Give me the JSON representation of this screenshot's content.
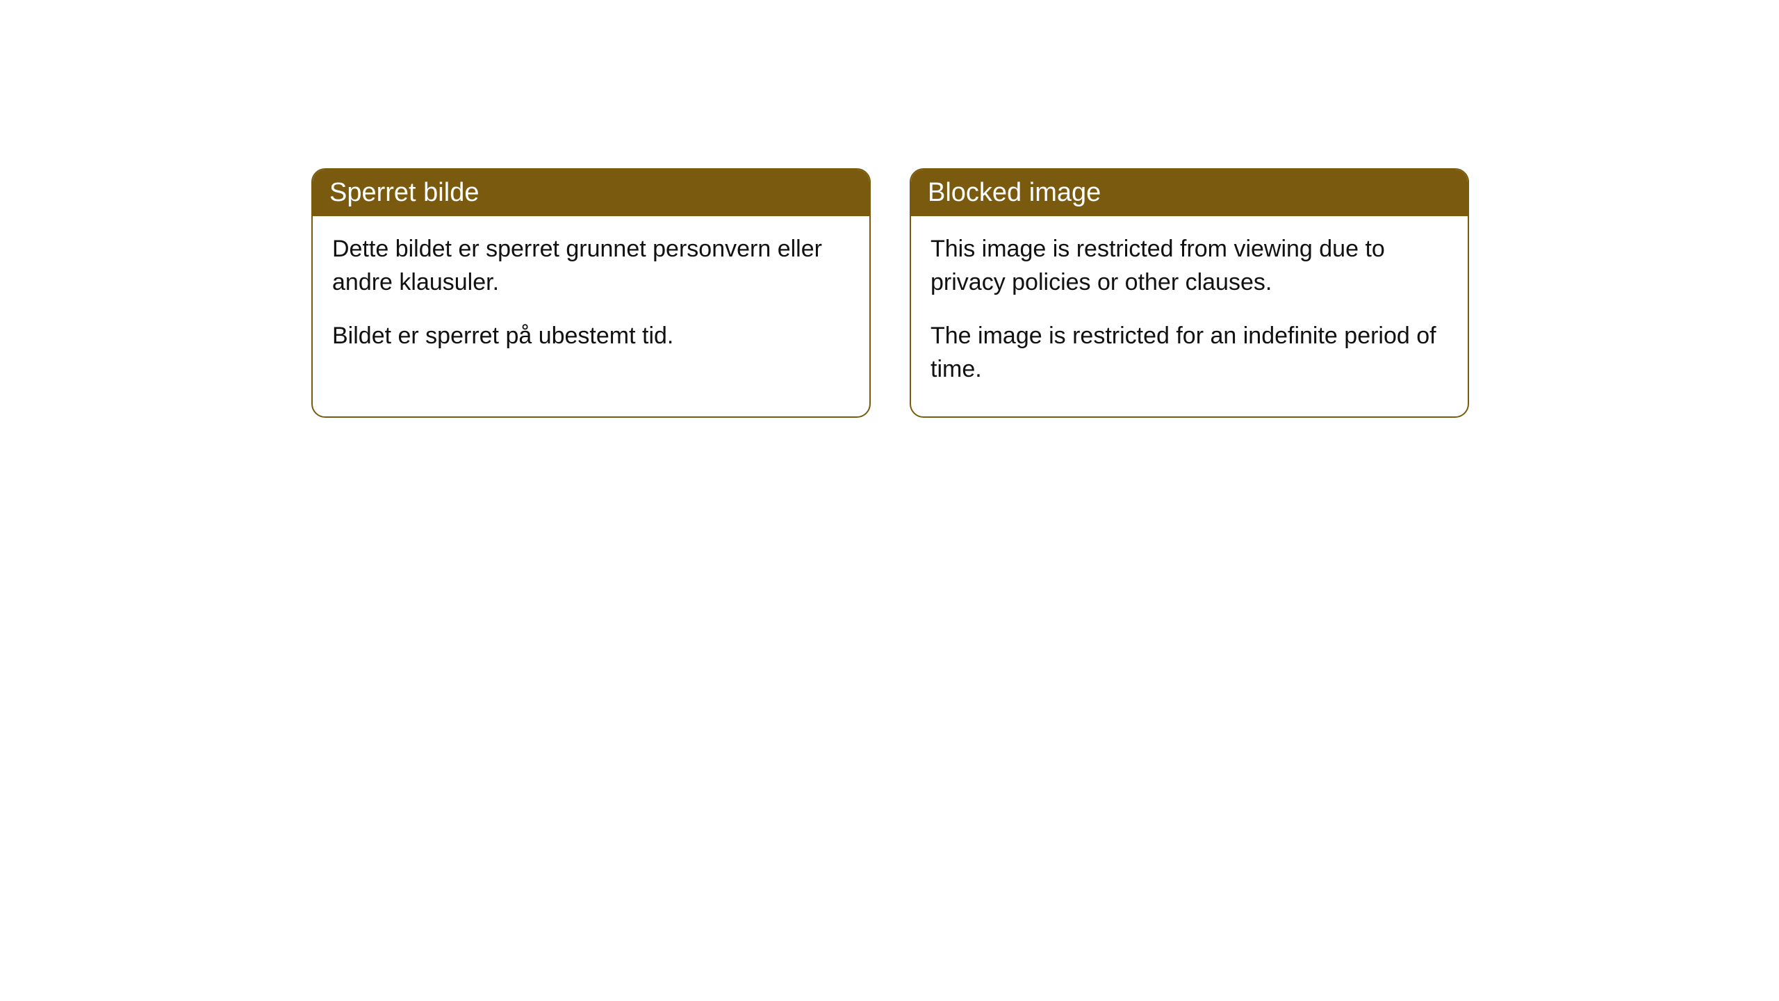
{
  "cards": [
    {
      "title": "Sperret bilde",
      "paragraph1": "Dette bildet er sperret grunnet personvern eller andre klausuler.",
      "paragraph2": "Bildet er sperret på ubestemt tid."
    },
    {
      "title": "Blocked image",
      "paragraph1": "This image is restricted from viewing due to privacy policies or other clauses.",
      "paragraph2": "The image is restricted for an indefinite period of time."
    }
  ],
  "style": {
    "header_bg_color": "#7a5a0f",
    "header_text_color": "#ffffff",
    "border_color": "#7a5a0f",
    "body_bg_color": "#ffffff",
    "body_text_color": "#111111",
    "border_radius": 20,
    "title_fontsize": 38,
    "body_fontsize": 34
  }
}
